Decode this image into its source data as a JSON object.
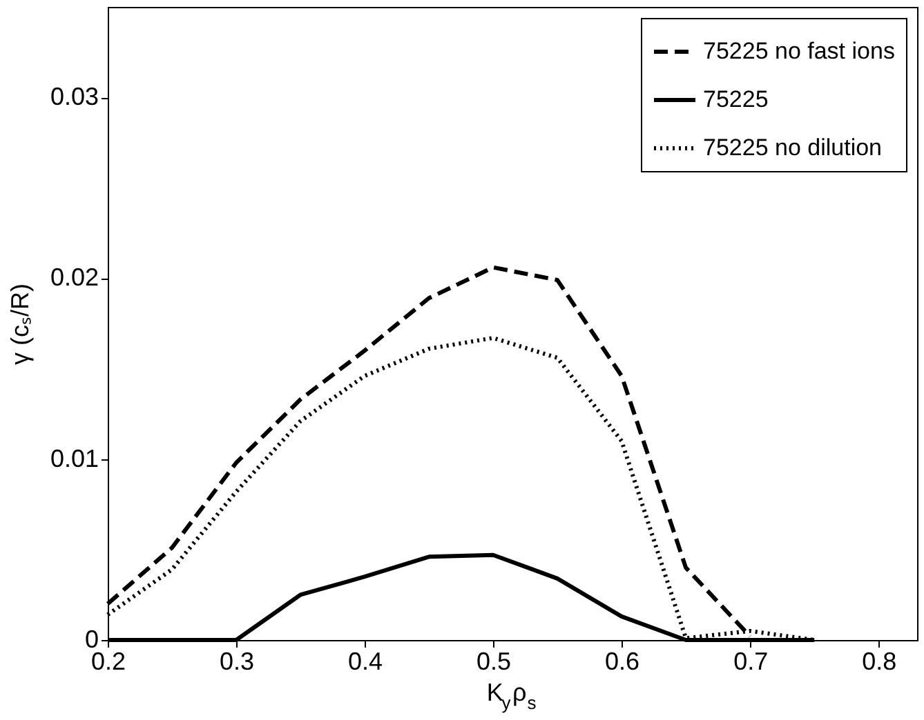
{
  "chart_data": {
    "type": "line",
    "xlabel": "K$_{y}$ρ$_{s}$",
    "ylabel": "γ (cₛ/R)",
    "x": [
      0.2,
      0.25,
      0.3,
      0.35,
      0.4,
      0.45,
      0.5,
      0.55,
      0.6,
      0.65,
      0.7,
      0.75
    ],
    "series": [
      {
        "name": "75225 no fast ions",
        "color": "#000000",
        "line_style": "dashed",
        "values": [
          0.002,
          0.0051,
          0.0098,
          0.0133,
          0.016,
          0.0189,
          0.0206,
          0.0199,
          0.0146,
          0.004,
          0.0002,
          null
        ]
      },
      {
        "name": "75225",
        "color": "#000000",
        "line_style": "solid",
        "values": [
          0,
          0,
          0,
          0.0025,
          0.0035,
          0.0046,
          0.0047,
          0.0034,
          0.0013,
          0,
          0,
          0
        ]
      },
      {
        "name": "75225 no dilution",
        "color": "#000000",
        "line_style": "dotted",
        "values": [
          0.0014,
          0.0039,
          0.0082,
          0.0121,
          0.0146,
          0.0161,
          0.0167,
          0.0156,
          0.011,
          0.0001,
          0.0005,
          0
        ]
      }
    ],
    "xlim": [
      0.2,
      0.83
    ],
    "xticks": [
      0.2,
      0.3,
      0.4,
      0.5,
      0.6,
      0.7,
      0.8
    ],
    "ylim": [
      0,
      0.035
    ],
    "yticks": [
      0,
      0.01,
      0.02,
      0.03
    ],
    "grid": false,
    "legend": "top right",
    "marker": "none"
  }
}
